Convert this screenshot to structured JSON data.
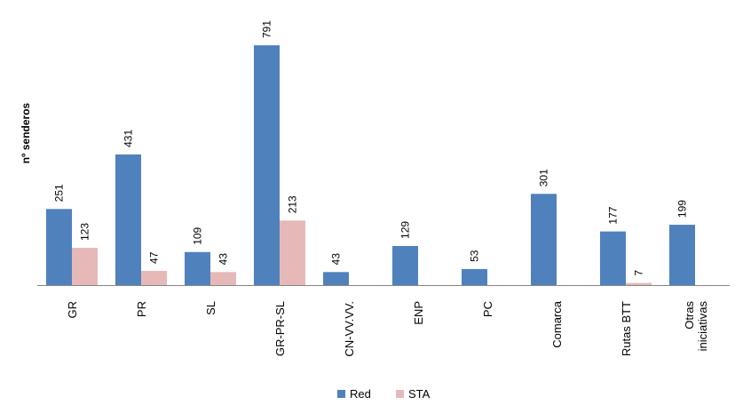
{
  "chart_data": {
    "type": "bar",
    "title": "",
    "xlabel": "",
    "ylabel": "nº senderos",
    "categories": [
      "GR",
      "PR",
      "SL",
      "GR-PR-SL",
      "CN-VV.VV.",
      "ENP",
      "PC",
      "Comarca",
      "Rutas BTT",
      "Otras iniciativas"
    ],
    "category_lines": [
      [
        "GR"
      ],
      [
        "PR"
      ],
      [
        "SL"
      ],
      [
        "GR-PR-SL"
      ],
      [
        "CN-VV.VV."
      ],
      [
        "ENP"
      ],
      [
        "PC"
      ],
      [
        "Comarca"
      ],
      [
        "Rutas BTT"
      ],
      [
        "Otras",
        "iniciativas"
      ]
    ],
    "series": [
      {
        "name": "Red",
        "color": "#4f81bd",
        "values": [
          251,
          431,
          109,
          791,
          43,
          129,
          53,
          301,
          177,
          199
        ]
      },
      {
        "name": "STA",
        "color": "#e6b9b8",
        "values": [
          123,
          47,
          43,
          213,
          null,
          null,
          null,
          null,
          7,
          null
        ]
      }
    ],
    "ylim": [
      0,
      800
    ],
    "grid": false,
    "legend": "bottom",
    "data_labels": true
  }
}
